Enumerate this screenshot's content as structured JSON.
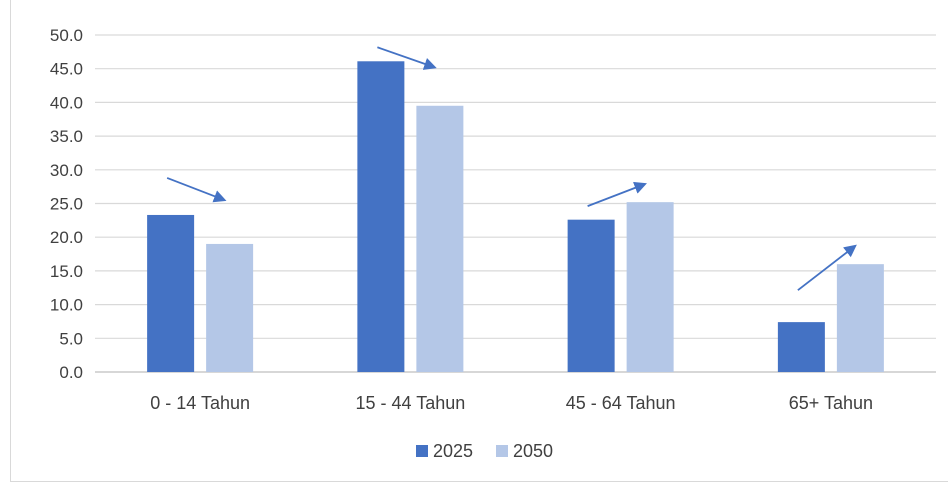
{
  "chart_data": {
    "type": "bar",
    "categories": [
      "0 - 14 Tahun",
      "15 - 44 Tahun",
      "45 - 64 Tahun",
      "65+ Tahun"
    ],
    "series": [
      {
        "name": "2025",
        "values": [
          23.3,
          46.1,
          22.6,
          7.4
        ],
        "color": "#4472c4"
      },
      {
        "name": "2050",
        "values": [
          19.0,
          39.5,
          25.2,
          16.0
        ],
        "color": "#b4c7e7"
      }
    ],
    "ylim": [
      0,
      50
    ],
    "yticks": [
      "0.0",
      "5.0",
      "10.0",
      "15.0",
      "20.0",
      "25.0",
      "30.0",
      "35.0",
      "40.0",
      "45.0",
      "50.0"
    ],
    "grid": true,
    "legend_position": "bottom",
    "annotations": {
      "type": "arrows",
      "color": "#4472c4",
      "directions": [
        "down",
        "down",
        "up",
        "up"
      ]
    }
  }
}
